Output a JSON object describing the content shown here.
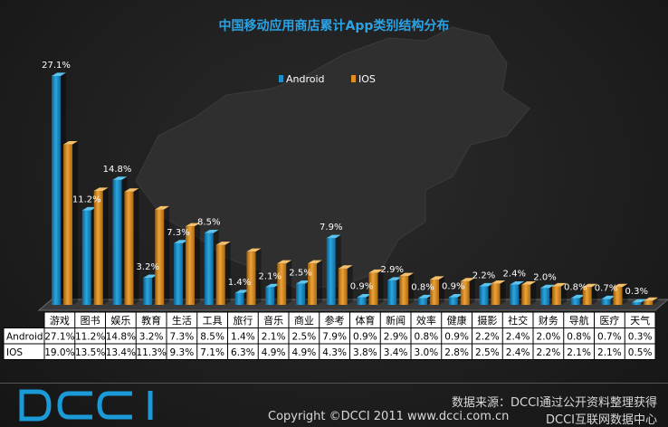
{
  "chart_data": {
    "type": "bar",
    "title": "中国移动应用商店累计App类别结构分布",
    "categories": [
      "游戏",
      "图书",
      "娱乐",
      "教育",
      "生活",
      "工具",
      "旅行",
      "音乐",
      "商业",
      "参考",
      "体育",
      "新闻",
      "效率",
      "健康",
      "摄影",
      "社交",
      "财务",
      "导航",
      "医疗",
      "天气"
    ],
    "series": [
      {
        "name": "Android",
        "values": [
          27.1,
          11.2,
          14.8,
          3.2,
          7.3,
          8.5,
          1.4,
          2.1,
          2.5,
          7.9,
          0.9,
          2.9,
          0.8,
          0.9,
          2.2,
          2.4,
          2.0,
          0.8,
          0.7,
          0.3
        ]
      },
      {
        "name": "IOS",
        "values": [
          19.0,
          13.5,
          13.4,
          11.3,
          9.3,
          7.1,
          6.3,
          4.9,
          4.9,
          4.3,
          3.8,
          3.4,
          3.0,
          2.8,
          2.5,
          2.4,
          2.2,
          2.1,
          2.1,
          0.5
        ]
      }
    ],
    "data_label_suffix": "%",
    "legend_position": "top-center",
    "ylim": [
      0,
      28
    ],
    "grid": false,
    "table": {
      "row_labels": [
        "Android",
        "IOS"
      ],
      "android": [
        "27.1%",
        "11.2%",
        "14.8%",
        "3.2%",
        "7.3%",
        "8.5%",
        "1.4%",
        "2.1%",
        "2.5%",
        "7.9%",
        "0.9%",
        "2.9%",
        "0.8%",
        "0.9%",
        "2.2%",
        "2.4%",
        "2.0%",
        "0.8%",
        "0.7%",
        "0.3%"
      ],
      "ios": [
        "19.0%",
        "13.5%",
        "13.4%",
        "11.3%",
        "9.3%",
        "7.1%",
        "6.3%",
        "4.9%",
        "4.9%",
        "4.3%",
        "3.8%",
        "3.4%",
        "3.0%",
        "2.8%",
        "2.5%",
        "2.4%",
        "2.2%",
        "2.1%",
        "2.1%",
        "0.5%"
      ]
    },
    "colors": {
      "android": "#1a8fc9",
      "ios": "#e0901a",
      "title": "#2aa3e6"
    }
  },
  "footer": {
    "logo_text": "DCCI",
    "source": "数据来源：DCCI通过公开资料整理获得",
    "copyright": "Copyright ©DCCI 2011 www.dcci.com.cn",
    "center": "DCCI互联网数据中心"
  }
}
